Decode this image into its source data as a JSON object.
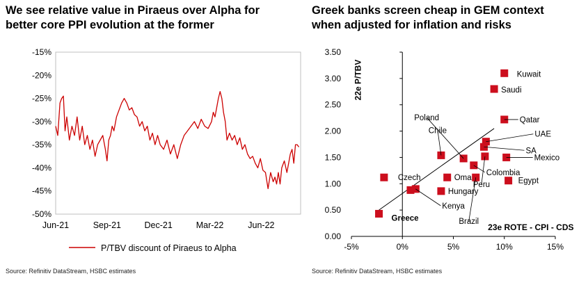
{
  "left_panel": {
    "title_line1": "We see relative value in Piraeus over Alpha for",
    "title_line2": "better core PPI evolution at the former",
    "source": "Source: Refinitiv DataStream, HSBC estimates"
  },
  "right_panel": {
    "title_line1": "Greek banks screen cheap in GEM context",
    "title_line2": "when adjusted for inflation and risks",
    "source": "Source: Refinitiv DataStream, HSBC estimates"
  },
  "colors": {
    "series": "#cc0000",
    "points": "#cc0e1d",
    "axis": "#000000",
    "frame": "#bfbfbf"
  },
  "chart_data": [
    {
      "type": "line",
      "title": "We see relative value in Piraeus over Alpha for better core PPI evolution at the former",
      "xlabel": "",
      "ylabel": "",
      "x_tick_labels": [
        "Jun-21",
        "Sep-21",
        "Dec-21",
        "Mar-22",
        "Jun-22"
      ],
      "y_ticks": [
        -15,
        -20,
        -25,
        -30,
        -35,
        -40,
        -45,
        -50
      ],
      "y_tick_labels": [
        "-15%",
        "-20%",
        "-25%",
        "-30%",
        "-35%",
        "-40%",
        "-45%",
        "-50%"
      ],
      "ylim": [
        -50,
        -15
      ],
      "xlim_months": [
        0,
        14.3
      ],
      "series": [
        {
          "name": "P/TBV discount of Piraeus to Alpha",
          "x": [
            0,
            0.12,
            0.25,
            0.35,
            0.45,
            0.55,
            0.65,
            0.8,
            0.95,
            1.1,
            1.25,
            1.4,
            1.55,
            1.7,
            1.85,
            2.0,
            2.15,
            2.3,
            2.45,
            2.6,
            2.75,
            2.9,
            3.0,
            3.1,
            3.2,
            3.3,
            3.4,
            3.55,
            3.7,
            3.85,
            4.0,
            4.15,
            4.3,
            4.45,
            4.6,
            4.75,
            4.9,
            5.05,
            5.2,
            5.35,
            5.5,
            5.65,
            5.8,
            5.95,
            6.1,
            6.3,
            6.5,
            6.7,
            6.9,
            7.1,
            7.3,
            7.5,
            7.7,
            7.9,
            8.1,
            8.3,
            8.5,
            8.7,
            8.9,
            9.1,
            9.2,
            9.3,
            9.4,
            9.5,
            9.6,
            9.7,
            9.8,
            9.9,
            10.0,
            10.15,
            10.3,
            10.45,
            10.6,
            10.75,
            10.9,
            11.05,
            11.2,
            11.35,
            11.5,
            11.65,
            11.8,
            11.95,
            12.1,
            12.25,
            12.4,
            12.55,
            12.7,
            12.8,
            12.9,
            13.0,
            13.1,
            13.2,
            13.35,
            13.5,
            13.6,
            13.7,
            13.8,
            13.9,
            14.0,
            14.1,
            14.2
          ],
          "values": [
            -31,
            -33,
            -26,
            -25,
            -24.5,
            -32,
            -29,
            -34,
            -31,
            -33,
            -29,
            -34,
            -31,
            -35,
            -33,
            -36,
            -34,
            -37.5,
            -35,
            -34,
            -33,
            -36,
            -38.5,
            -34,
            -33,
            -31,
            -32,
            -29,
            -27.5,
            -26,
            -25,
            -26,
            -27.5,
            -27,
            -28.5,
            -29,
            -31,
            -30,
            -32,
            -31,
            -34,
            -32.5,
            -35,
            -33,
            -35,
            -36,
            -34,
            -37,
            -35,
            -38,
            -35,
            -33,
            -32,
            -31,
            -30,
            -31.5,
            -29.5,
            -31,
            -31.5,
            -30,
            -28,
            -29,
            -27,
            -25,
            -23.5,
            -25,
            -28,
            -30,
            -34,
            -32.5,
            -34,
            -33,
            -35,
            -33.5,
            -36,
            -35,
            -37,
            -38,
            -37.5,
            -39,
            -40,
            -38,
            -40.5,
            -41,
            -44.5,
            -41,
            -43,
            -42,
            -43.5,
            -41,
            -43.5,
            -40,
            -38.5,
            -41,
            -39,
            -37,
            -36,
            -39,
            -35,
            -35,
            -35.5
          ]
        }
      ],
      "legend": {
        "position": "bottom",
        "label": "P/TBV discount of Piraeus to Alpha"
      }
    },
    {
      "type": "scatter",
      "title": "Greek banks screen cheap in GEM context when adjusted for inflation and risks",
      "xlabel": "23e ROTE - CPI - CDS",
      "ylabel": "22e P/TBV",
      "xlim": [
        -5,
        15
      ],
      "ylim": [
        0,
        3.5
      ],
      "x_ticks": [
        -5,
        0,
        5,
        10,
        15
      ],
      "x_tick_labels": [
        "-5%",
        "0%",
        "5%",
        "10%",
        "15%"
      ],
      "y_ticks": [
        0,
        0.5,
        1.0,
        1.5,
        2.0,
        2.5,
        3.0,
        3.5
      ],
      "y_tick_labels": [
        "0.00",
        "0.50",
        "1.00",
        "1.50",
        "2.00",
        "2.50",
        "3.00",
        "3.50"
      ],
      "points": [
        {
          "label": "Kuwait",
          "x": 10.0,
          "y": 3.1
        },
        {
          "label": "Saudi",
          "x": 9.0,
          "y": 2.8
        },
        {
          "label": "Qatar",
          "x": 10.0,
          "y": 2.22
        },
        {
          "label": "UAE",
          "x": 8.2,
          "y": 1.8
        },
        {
          "label": "SA",
          "x": 8.0,
          "y": 1.7
        },
        {
          "label": "Mexico",
          "x": 10.2,
          "y": 1.5
        },
        {
          "label": "Chile",
          "x": 3.8,
          "y": 1.54
        },
        {
          "label": "Colombia",
          "x": 7.0,
          "y": 1.35
        },
        {
          "label": "Poland",
          "x": 6.0,
          "y": 1.48
        },
        {
          "label": "Peru",
          "x": 8.1,
          "y": 1.52
        },
        {
          "label": "Egypt",
          "x": 10.4,
          "y": 1.06
        },
        {
          "label": "Oman",
          "x": 4.4,
          "y": 1.12
        },
        {
          "label": "Czech",
          "x": -1.8,
          "y": 1.12
        },
        {
          "label": "Hungary",
          "x": 3.8,
          "y": 0.86
        },
        {
          "label": "Brazil",
          "x": 7.2,
          "y": 1.12
        },
        {
          "label": "Kenya",
          "x": 1.3,
          "y": 0.9
        },
        {
          "label": "Greece",
          "x": -2.3,
          "y": 0.43
        },
        {
          "label": "",
          "x": 0.8,
          "y": 0.88
        }
      ],
      "trendline": {
        "x": [
          -2.3,
          9.0
        ],
        "y": [
          0.5,
          2.05
        ]
      }
    }
  ]
}
